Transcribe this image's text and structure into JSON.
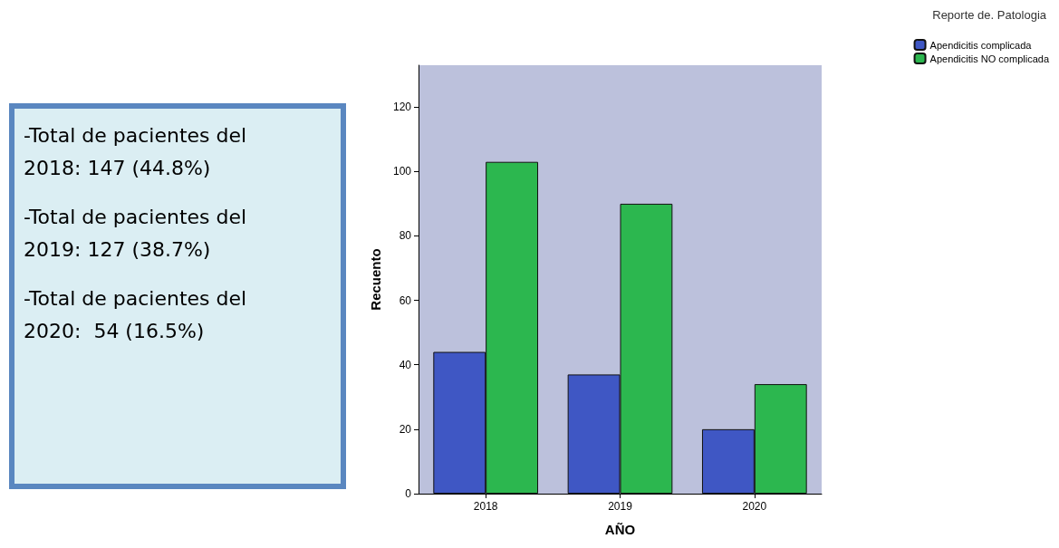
{
  "chart_data": {
    "type": "bar",
    "xlabel": "AÑO",
    "ylabel": "Recuento",
    "legend_title": "Reporte de. Patologia",
    "categories": [
      "2018",
      "2019",
      "2020"
    ],
    "series": [
      {
        "name": "Apendicitis complicada",
        "color": "#3f57c4",
        "values": [
          44,
          37,
          20
        ]
      },
      {
        "name": "Apendicitis NO complicada",
        "color": "#2cb74f",
        "values": [
          103,
          90,
          34
        ]
      }
    ],
    "ylim": [
      0,
      133
    ],
    "yticks": [
      0,
      20,
      40,
      60,
      80,
      100,
      120
    ],
    "grid": false,
    "legend": "top right",
    "annotations": [
      "-Total de pacientes del 2018: 147 (44.8%)",
      "-Total de pacientes del 2019: 127 (38.7%)",
      "-Total de pacientes del 2020:  54 (16.5%)"
    ]
  }
}
